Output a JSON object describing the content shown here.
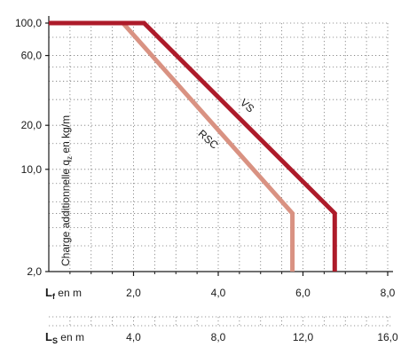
{
  "chart_data": {
    "type": "line",
    "ylabel": "Charge additionnelle q",
    "ylabel_sub": "z",
    "ylabel_suffix": " en kg/m",
    "yscale": "log",
    "ylim": [
      2.0,
      100.0
    ],
    "yticks": [
      {
        "value": 100.0,
        "label": "100,0"
      },
      {
        "value": 60.0,
        "label": "60,0"
      },
      {
        "value": 20.0,
        "label": "20,0"
      },
      {
        "value": 10.0,
        "label": "10,0"
      },
      {
        "value": 2.0,
        "label": "2,0"
      }
    ],
    "x_axis_f": {
      "label_main": "L",
      "label_sub": "f",
      "label_suffix": " en m",
      "xlim": [
        0.0,
        8.0
      ],
      "ticks": [
        {
          "value": 2.0,
          "label": "2,0"
        },
        {
          "value": 4.0,
          "label": "4,0"
        },
        {
          "value": 6.0,
          "label": "6,0"
        },
        {
          "value": 8.0,
          "label": "8,0"
        }
      ]
    },
    "x_axis_s": {
      "label_main": "L",
      "label_sub": "S",
      "label_suffix": " en m",
      "xlim": [
        0.0,
        16.0
      ],
      "ticks": [
        {
          "value": 4.0,
          "label": "4,0"
        },
        {
          "value": 8.0,
          "label": "8,0"
        },
        {
          "value": 12.0,
          "label": "12,0"
        },
        {
          "value": 16.0,
          "label": "16,0"
        }
      ]
    },
    "grid": true,
    "series": [
      {
        "name": "RSC",
        "color": "#d99282",
        "x": [
          0.0,
          1.75,
          5.75,
          5.75
        ],
        "y": [
          100.0,
          100.0,
          5.0,
          2.0
        ]
      },
      {
        "name": "VS",
        "color": "#ad1b2a",
        "x": [
          0.0,
          2.25,
          6.75,
          6.75
        ],
        "y": [
          100.0,
          100.0,
          5.0,
          2.0
        ]
      }
    ]
  }
}
